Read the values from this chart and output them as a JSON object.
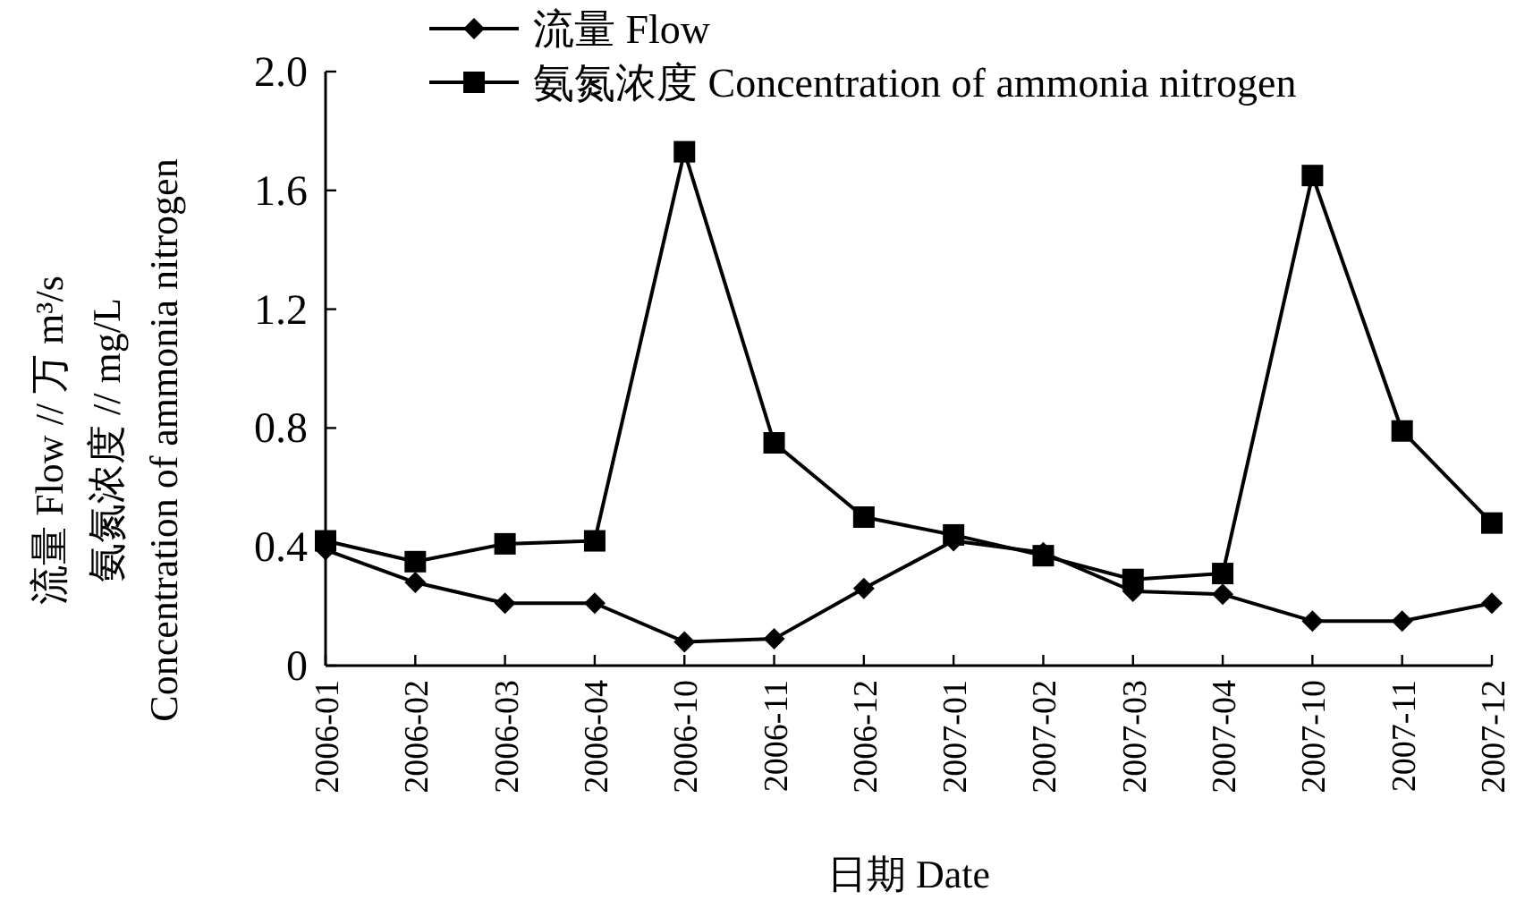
{
  "chart_data": {
    "type": "line",
    "xlabel": "日期 Date",
    "ylabel": "流量 Flow // 万 m³/s\n氨氮浓度 // mg/L\nConcentration of ammonia nitrogen",
    "categories": [
      "2006-01",
      "2006-02",
      "2006-03",
      "2006-04",
      "2006-10",
      "2006-11",
      "2006-12",
      "2007-01",
      "2007-02",
      "2007-03",
      "2007-04",
      "2007-10",
      "2007-11",
      "2007-12"
    ],
    "series": [
      {
        "name": "流量 Flow",
        "color": "#000000",
        "marker": "diamond",
        "values": [
          0.39,
          0.28,
          0.21,
          0.21,
          0.08,
          0.09,
          0.26,
          0.42,
          0.38,
          0.25,
          0.24,
          0.15,
          0.15,
          0.21
        ]
      },
      {
        "name": "氨氮浓度 Concentration of ammonia nitrogen",
        "color": "#000000",
        "marker": "square",
        "values": [
          0.42,
          0.35,
          0.41,
          0.42,
          1.73,
          0.75,
          0.5,
          0.44,
          0.37,
          0.29,
          0.31,
          1.65,
          0.79,
          0.48
        ]
      }
    ],
    "ylim": [
      0,
      2.0
    ],
    "yticks": [
      0,
      {
        "value": 0.4,
        "label": "0.4"
      },
      {
        "value": 0.8,
        "label": "0.8"
      },
      {
        "value": 1.2,
        "label": "1.2"
      },
      {
        "value": 1.6,
        "label": "1.6"
      },
      {
        "value": 2.0,
        "label": "2.0"
      }
    ],
    "legend": "top",
    "line_style": "solid"
  }
}
